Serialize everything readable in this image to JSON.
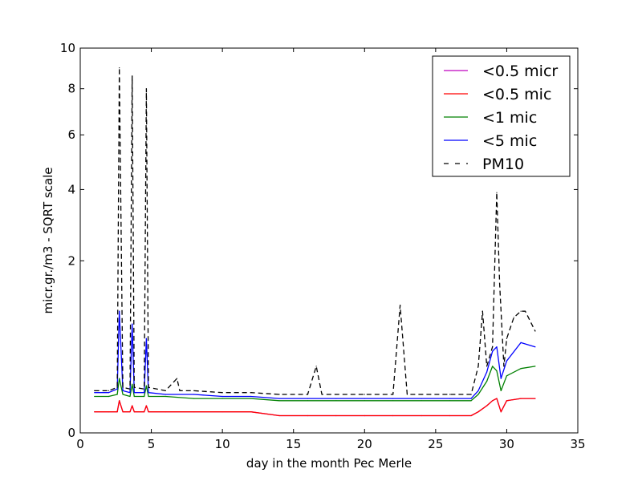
{
  "chart_data": {
    "type": "line",
    "title": "",
    "xlabel": "day in the month Pec Merle",
    "ylabel": "micr.gr./m3 - SQRT scale",
    "xlim": [
      0,
      35
    ],
    "ylim": [
      0,
      10
    ],
    "yscale": "sqrt",
    "x_ticks": [
      0,
      5,
      10,
      15,
      20,
      25,
      30,
      35
    ],
    "y_ticks": [
      0,
      2,
      4,
      6,
      8,
      10
    ],
    "grid": false,
    "legend_position": "top-right",
    "series": [
      {
        "name": "<0.5 micr",
        "color": "#bf00bf",
        "style": "solid",
        "x": [
          1,
          2,
          2.6,
          2.75,
          3,
          3.5,
          3.65,
          3.8,
          4.5,
          4.65,
          4.8,
          6,
          8,
          10,
          12,
          14,
          16,
          18,
          20,
          22,
          24,
          26,
          27.5,
          28,
          28.6,
          29,
          29.3,
          29.6,
          30,
          31,
          32
        ],
        "values": [
          0.03,
          0.03,
          0.03,
          0.07,
          0.03,
          0.03,
          0.05,
          0.03,
          0.03,
          0.05,
          0.03,
          0.03,
          0.03,
          0.03,
          0.03,
          0.02,
          0.02,
          0.02,
          0.02,
          0.02,
          0.02,
          0.02,
          0.02,
          0.03,
          0.05,
          0.07,
          0.08,
          0.03,
          0.07,
          0.08,
          0.08
        ]
      },
      {
        "name": "<0.5 mic",
        "color": "#ff0000",
        "style": "solid",
        "x": [
          1,
          2,
          2.6,
          2.75,
          3,
          3.5,
          3.65,
          3.8,
          4.5,
          4.65,
          4.8,
          6,
          8,
          10,
          12,
          14,
          16,
          18,
          20,
          22,
          24,
          26,
          27.5,
          28,
          28.6,
          29,
          29.3,
          29.6,
          30,
          31,
          32
        ],
        "values": [
          0.03,
          0.03,
          0.03,
          0.07,
          0.03,
          0.03,
          0.05,
          0.03,
          0.03,
          0.05,
          0.03,
          0.03,
          0.03,
          0.03,
          0.03,
          0.02,
          0.02,
          0.02,
          0.02,
          0.02,
          0.02,
          0.02,
          0.02,
          0.03,
          0.05,
          0.07,
          0.08,
          0.03,
          0.07,
          0.08,
          0.08
        ]
      },
      {
        "name": "<1 mic",
        "color": "#008000",
        "style": "solid",
        "x": [
          1,
          2,
          2.6,
          2.75,
          3,
          3.5,
          3.65,
          3.8,
          4.5,
          4.65,
          4.8,
          6,
          8,
          10,
          12,
          14,
          16,
          18,
          20,
          22,
          24,
          26,
          27.5,
          28,
          28.6,
          29,
          29.3,
          29.6,
          30,
          31,
          32
        ],
        "values": [
          0.09,
          0.09,
          0.1,
          0.2,
          0.1,
          0.09,
          0.16,
          0.09,
          0.09,
          0.15,
          0.09,
          0.09,
          0.08,
          0.08,
          0.08,
          0.07,
          0.07,
          0.07,
          0.07,
          0.07,
          0.07,
          0.07,
          0.07,
          0.1,
          0.18,
          0.3,
          0.26,
          0.12,
          0.22,
          0.28,
          0.3
        ]
      },
      {
        "name": "<5 mic",
        "color": "#0000ff",
        "style": "solid",
        "x": [
          1,
          2,
          2.6,
          2.75,
          3,
          3.5,
          3.65,
          3.8,
          4.5,
          4.65,
          4.8,
          6,
          8,
          10,
          12,
          14,
          16,
          18,
          20,
          22,
          24,
          26,
          27.5,
          28,
          28.6,
          29,
          29.3,
          29.6,
          30,
          31,
          32
        ],
        "values": [
          0.11,
          0.11,
          0.13,
          1.0,
          0.12,
          0.11,
          0.8,
          0.11,
          0.11,
          0.6,
          0.11,
          0.1,
          0.1,
          0.09,
          0.09,
          0.08,
          0.08,
          0.08,
          0.08,
          0.08,
          0.08,
          0.08,
          0.08,
          0.12,
          0.25,
          0.45,
          0.5,
          0.2,
          0.35,
          0.55,
          0.5
        ]
      },
      {
        "name": "PM10",
        "color": "#000000",
        "style": "dashed",
        "x": [
          1,
          2,
          2.6,
          2.75,
          3,
          3.5,
          3.65,
          3.8,
          4.5,
          4.65,
          4.8,
          6,
          6.8,
          7,
          8,
          10,
          12,
          14,
          16,
          16.6,
          17,
          18,
          20,
          22,
          22.5,
          23,
          24,
          26,
          27.5,
          28,
          28.3,
          28.6,
          29,
          29.3,
          29.5,
          29.8,
          30,
          30.5,
          31,
          31.3,
          32
        ],
        "values": [
          0.12,
          0.12,
          0.14,
          9.0,
          0.14,
          0.13,
          8.6,
          0.14,
          0.13,
          8.0,
          0.14,
          0.12,
          0.2,
          0.12,
          0.12,
          0.11,
          0.11,
          0.1,
          0.1,
          0.3,
          0.1,
          0.1,
          0.1,
          0.1,
          1.1,
          0.1,
          0.1,
          0.1,
          0.1,
          0.3,
          1.0,
          0.3,
          0.5,
          3.9,
          1.5,
          0.3,
          0.6,
          0.9,
          1.0,
          1.0,
          0.7
        ]
      }
    ]
  }
}
